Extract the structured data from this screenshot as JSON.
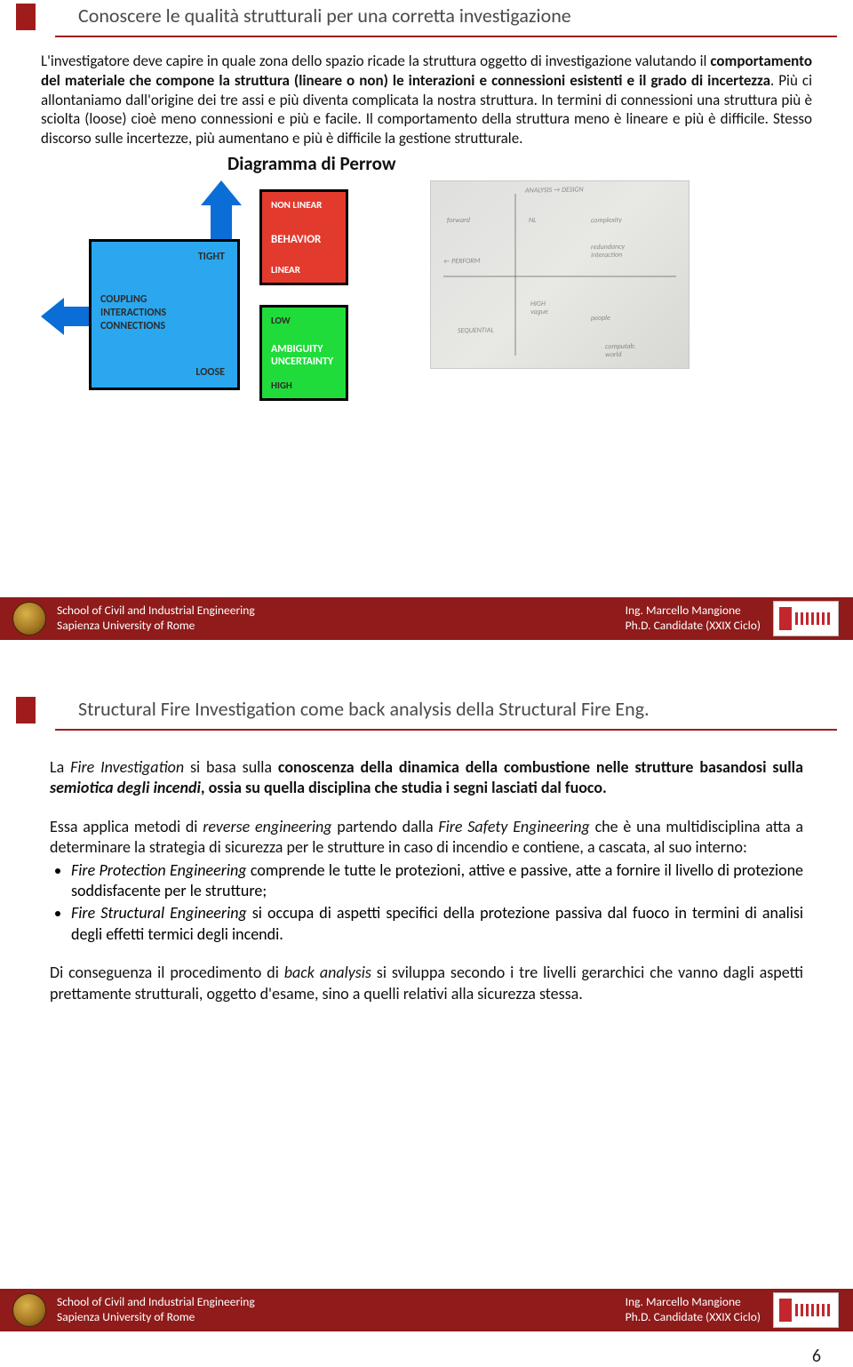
{
  "slide1": {
    "title": "Conoscere le qualità strutturali per una corretta investigazione",
    "para_html": "L'investigatore deve capire in quale zona dello spazio ricade la struttura oggetto di investigazione valutando il <b>comportamento del materiale che compone la struttura (lineare o non) le interazioni e connessioni esistenti e il grado di incertezza</b>. Più ci allontaniamo dall'origine dei tre assi e più diventa complicata la nostra struttura. In termini di connessioni una struttura più è sciolta (loose) cioè meno connessioni e più e facile. Il comportamento della struttura meno è lineare e più è difficile. Stesso discorso sulle incertezze, più aumentano e più è difficile la gestione strutturale.",
    "diagram_title": "Diagramma di Perrow",
    "perrow": {
      "blue": {
        "tight": "TIGHT",
        "loose": "LOOSE",
        "line1": "COUPLING",
        "line2": "INTERACTIONS",
        "line3": "CONNECTIONS",
        "bg": "#2aa7ee"
      },
      "red": {
        "nonlinear": "NON LINEAR",
        "behavior": "BEHAVIOR",
        "linear": "LINEAR",
        "bg": "#e33a2e"
      },
      "green": {
        "low": "LOW",
        "line1": "AMBIGUITY",
        "line2": "UNCERTAINTY",
        "high": "HIGH",
        "bg": "#1fdc3a"
      },
      "arrow_color": "#0a6ed6"
    }
  },
  "slide2": {
    "title": "Structural Fire Investigation come back analysis della Structural Fire Eng.",
    "p1_html": "La <span class='em'>Fire Investigation</span> si basa sulla <b>conoscenza della dinamica della combustione nelle strutture basandosi sulla <span class='em'>semiotica degli incendi</span>, ossia su quella disciplina che studia i segni lasciati dal fuoco.</b>",
    "p2_html": "Essa applica metodi di <span class='em'>reverse engineering</span> partendo dalla <span class='em'>Fire Safety Engineering</span> che è una multidisciplina atta a determinare la strategia di sicurezza per le strutture in caso di incendio e contiene, a cascata, al suo interno:",
    "bullets": [
      "<span class='em'>Fire Protection Engineering</span> comprende le tutte le protezioni, attive e passive, atte a fornire il livello di protezione soddisfacente per le strutture;",
      "<span class='em'>Fire Structural Engineering</span> si occupa di aspetti specifici della protezione passiva dal fuoco in termini di analisi degli effetti termici degli incendi."
    ],
    "p3_html": "Di conseguenza il procedimento di <span class='em'>back analysis</span> si sviluppa secondo i tre livelli gerarchici che vanno dagli aspetti prettamente strutturali, oggetto d'esame, sino a quelli relativi alla sicurezza stessa."
  },
  "footer": {
    "school_line1": "School of Civil and Industrial Engineering",
    "school_line2": "Sapienza University of Rome",
    "author_line1": "Ing. Marcello Mangione",
    "author_line2": "Ph.D. Candidate (XXIX Ciclo)"
  },
  "page_number": "6"
}
